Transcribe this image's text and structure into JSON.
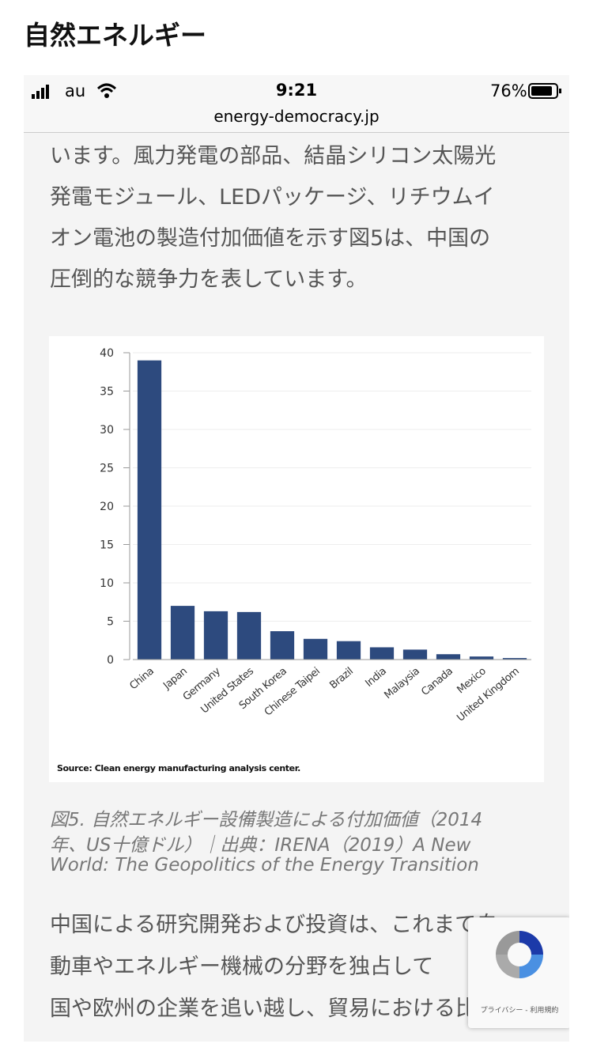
{
  "header": {
    "title": "自然エネルギー"
  },
  "status_bar": {
    "carrier": "au",
    "time": "9:21",
    "battery": "76%",
    "url": "energy-democracy.jp"
  },
  "paragraph_1": [
    "います。風力発電の部品、結晶シリコン太陽光",
    "発電モジュール、LEDパッケージ、リチウムイ",
    "オン電池の製造付加価値を示す図5は、中国の",
    "圧倒的な競争力を表しています。"
  ],
  "chart_data": {
    "type": "bar",
    "categories": [
      "China",
      "Japan",
      "Germany",
      "United States",
      "South Korea",
      "Chinese Taipei",
      "Brazil",
      "India",
      "Malaysia",
      "Canada",
      "Mexico",
      "United Kingdom"
    ],
    "values": [
      39,
      7,
      6.3,
      6.2,
      3.7,
      2.7,
      2.4,
      1.6,
      1.3,
      0.7,
      0.4,
      0.2
    ],
    "color": "#2d4a7e",
    "ylim": [
      0,
      40
    ],
    "yticks": [
      0,
      5,
      10,
      15,
      20,
      25,
      30,
      35,
      40
    ],
    "grid": true,
    "source": "Source: Clean energy manufacturing analysis center."
  },
  "caption": [
    "図5. 自然エネルギー設備製造による付加価値（2014",
    "年、US十億ドル）｜出典：IRENA（2019）A New",
    "World: The Geopolitics of the Energy Transition"
  ],
  "paragraph_2": [
    "中国による研究開発および投資は、これまで自",
    "動車やエネルギー機械の分野を独占して",
    "国や欧州の企業を追い越し、貿易における比較"
  ],
  "recaptcha": "プライバシー - 利用規約"
}
